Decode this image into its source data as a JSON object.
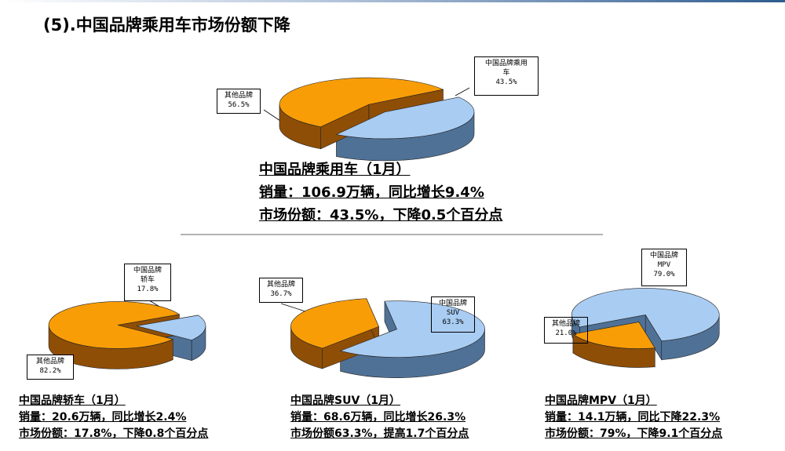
{
  "title": "(5).中国品牌乘用车市场份额下降",
  "colors": {
    "domestic_top": "#a9ccf2",
    "domestic_side": "#4f7196",
    "other_top": "#f99d07",
    "other_side": "#8f4e06"
  },
  "chart_data": [
    {
      "type": "pie",
      "id": "passenger",
      "slices": [
        {
          "label_line1": "中国品牌乘用",
          "label_line2": "车",
          "pct_text": "43.5%",
          "value": 43.5
        },
        {
          "label_line1": "其他品牌",
          "label_line2": "",
          "pct_text": "56.5%",
          "value": 56.5
        }
      ],
      "caption": [
        "中国品牌乘用车（1月）",
        "销量：106.9万辆，同比增长9.4%",
        "市场份额：43.5%，下降0.5个百分点"
      ]
    },
    {
      "type": "pie",
      "id": "sedan",
      "slices": [
        {
          "label_line1": "中国品牌",
          "label_line2": "轿车",
          "pct_text": "17.8%",
          "value": 17.8
        },
        {
          "label_line1": "其他品牌",
          "label_line2": "",
          "pct_text": "82.2%",
          "value": 82.2
        }
      ],
      "caption": [
        "中国品牌轿车（1月）",
        "销量：20.6万辆，同比增长2.4%",
        "市场份额：17.8%，下降0.8个百分点"
      ]
    },
    {
      "type": "pie",
      "id": "suv",
      "slices": [
        {
          "label_line1": "中国品牌",
          "label_line2": "SUV",
          "pct_text": "63.3%",
          "value": 63.3
        },
        {
          "label_line1": "其他品牌",
          "label_line2": "",
          "pct_text": "36.7%",
          "value": 36.7
        }
      ],
      "caption": [
        "中国品牌SUV（1月）",
        "销量：68.6万辆，同比增长26.3%",
        "市场份额63.3%，提高1.7个百分点"
      ]
    },
    {
      "type": "pie",
      "id": "mpv",
      "slices": [
        {
          "label_line1": "中国品牌",
          "label_line2": "MPV",
          "pct_text": "79.0%",
          "value": 79.0
        },
        {
          "label_line1": "其他品牌",
          "label_line2": "",
          "pct_text": "21.0%",
          "value": 21.0
        }
      ],
      "caption": [
        "中国品牌MPV（1月）",
        "销量：14.1万辆，同比下降22.3%",
        "市场份额：79%，下降9.1个百分点"
      ]
    }
  ]
}
